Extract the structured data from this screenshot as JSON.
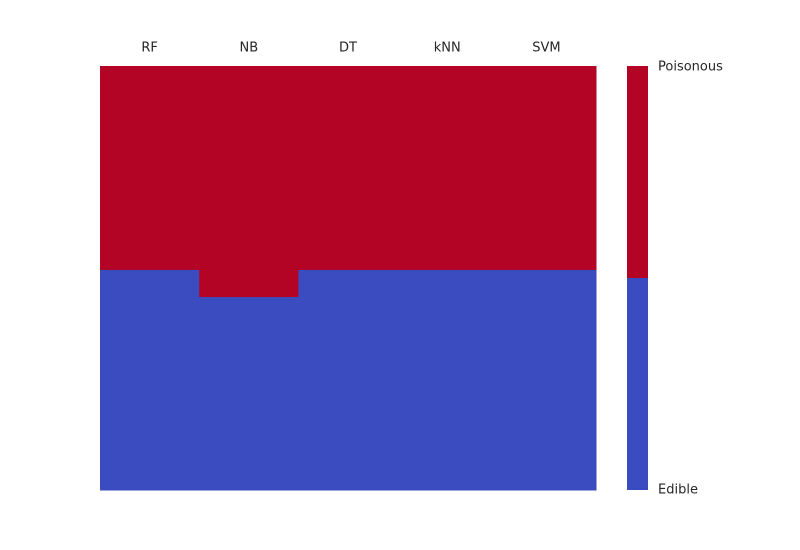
{
  "chart_data": {
    "type": "heatmap",
    "categories": [
      "RF",
      "NB",
      "DT",
      "kNN",
      "SVM"
    ],
    "series": [
      {
        "name": "Poisonous",
        "color": "#b40426",
        "values": [
          48.1,
          54.5,
          48.1,
          48.1,
          48.1
        ]
      },
      {
        "name": "Edible",
        "color": "#3b4cc0",
        "values": [
          51.9,
          45.5,
          51.9,
          51.9,
          51.9
        ]
      }
    ]
  }
}
